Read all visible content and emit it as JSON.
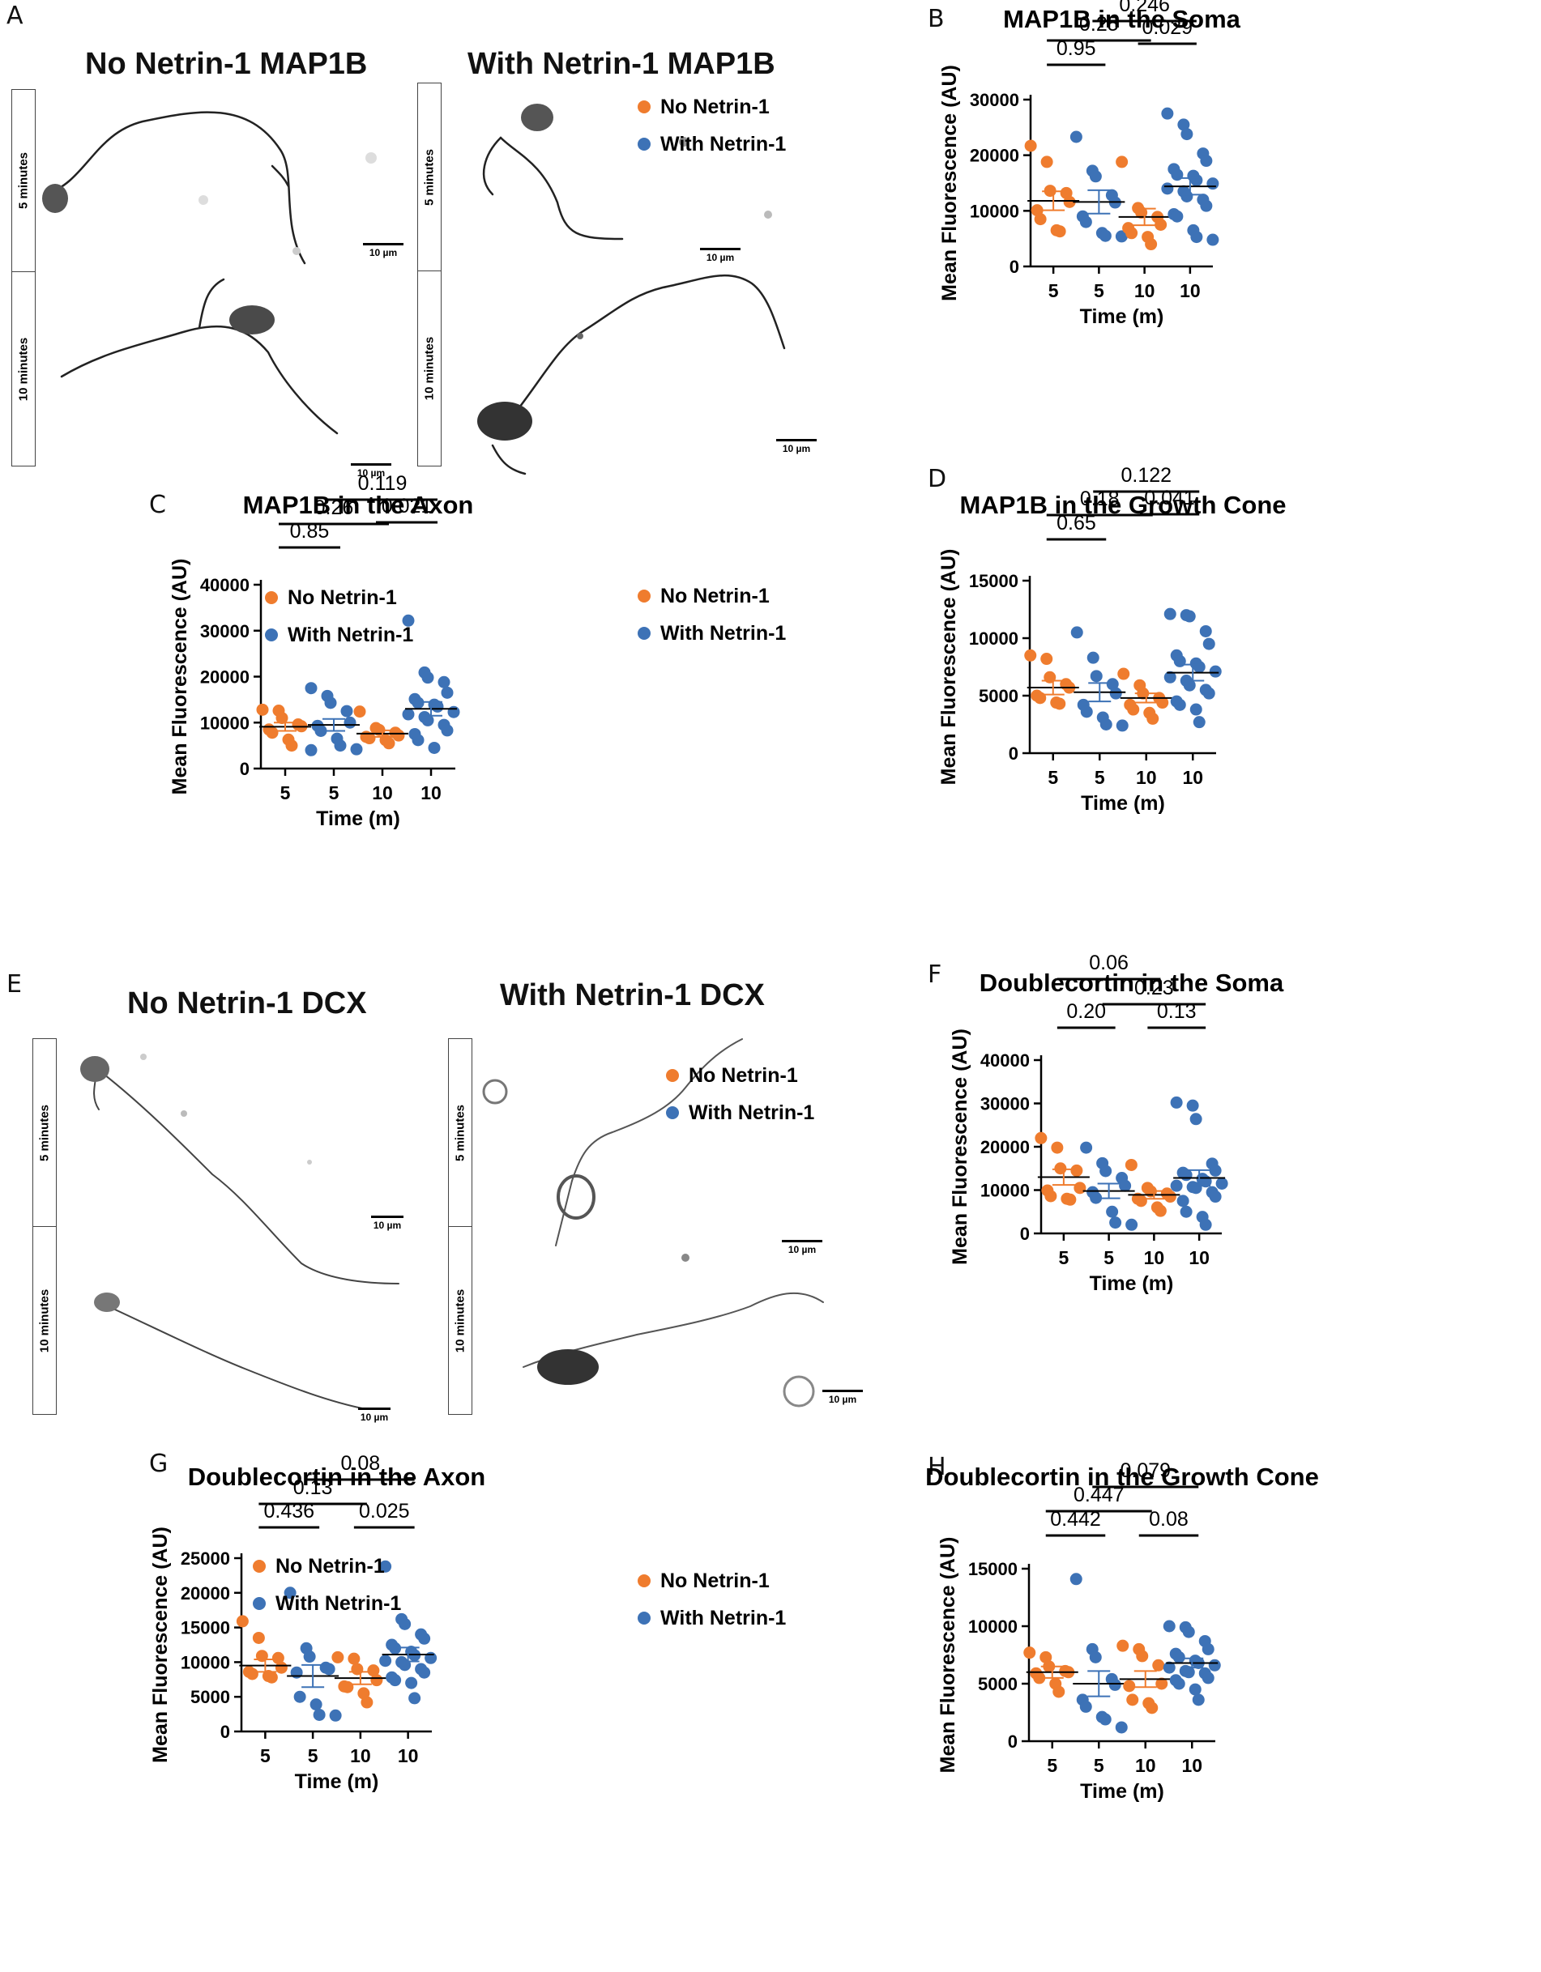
{
  "panel_labels": {
    "A": "A",
    "B": "B",
    "C": "C",
    "D": "D",
    "E": "E",
    "F": "F",
    "G": "G",
    "H": "H"
  },
  "panel_a": {
    "left_title": "No Netrin-1 MAP1B",
    "right_title": "With Netrin-1 MAP1B",
    "row_top": "5 minutes",
    "row_bottom": "10 minutes",
    "scale": "10 µm"
  },
  "panel_e": {
    "left_title": "No Netrin-1 DCX",
    "right_title": "With Netrin-1 DCX",
    "row_top": "5 minutes",
    "row_bottom": "10 minutes",
    "scale": "10 µm"
  },
  "colors": {
    "no_netrin": "#ef7c2e",
    "with_netrin": "#3d72b6",
    "axis": "#000000"
  },
  "chart_data": [
    {
      "id": "B",
      "type": "scatter",
      "title": "MAP1B in the Soma",
      "xlabel": "Time (m)",
      "ylabel": "Mean Fluorescence (AU)",
      "categories": [
        "5",
        "5",
        "10",
        "10"
      ],
      "ylim": [
        0,
        30000
      ],
      "yticks": [
        0,
        10000,
        20000,
        30000
      ],
      "legend": [
        "No Netrin-1",
        "With Netrin-1"
      ],
      "groups": [
        {
          "series": "No Netrin-1",
          "mean": 11800,
          "sem": 1700,
          "values": [
            21700,
            18800,
            13600,
            13200,
            11600,
            10100,
            8500,
            6500,
            6300
          ]
        },
        {
          "series": "With Netrin-1",
          "mean": 11600,
          "sem": 2100,
          "values": [
            23300,
            17200,
            16200,
            12800,
            11500,
            9000,
            8000,
            6000,
            5500,
            5400
          ]
        },
        {
          "series": "No Netrin-1",
          "mean": 8900,
          "sem": 1500,
          "values": [
            18800,
            10500,
            9700,
            8900,
            7500,
            6900,
            6000,
            5300,
            4000
          ]
        },
        {
          "series": "With Netrin-1",
          "mean": 14400,
          "sem": 1500,
          "values": [
            27500,
            25500,
            23800,
            20300,
            19000,
            17500,
            16500,
            16300,
            15500,
            14900,
            14000,
            13500,
            12600,
            12000,
            10900,
            9400,
            9000,
            6500,
            5300,
            4800
          ]
        }
      ],
      "comparisons": [
        {
          "from": 1,
          "to": 3,
          "label": "0.246"
        },
        {
          "from": 2,
          "to": 3,
          "label": "0.029"
        },
        {
          "from": 0,
          "to": 2,
          "label": "0.25"
        },
        {
          "from": 0,
          "to": 1,
          "label": "0.95"
        }
      ]
    },
    {
      "id": "C",
      "type": "scatter",
      "title": "MAP1B in the Axon",
      "xlabel": "Time (m)",
      "ylabel": "Mean Fluorescence (AU)",
      "categories": [
        "5",
        "5",
        "10",
        "10"
      ],
      "ylim": [
        0,
        40000
      ],
      "yticks": [
        0,
        10000,
        20000,
        30000,
        40000
      ],
      "legend": [
        "No Netrin-1",
        "With Netrin-1"
      ],
      "groups": [
        {
          "series": "No Netrin-1",
          "mean": 9100,
          "sem": 900,
          "values": [
            12800,
            12600,
            11000,
            9600,
            9200,
            8500,
            7800,
            6300,
            5000
          ]
        },
        {
          "series": "With Netrin-1",
          "mean": 9500,
          "sem": 1300,
          "values": [
            17500,
            15800,
            14300,
            12500,
            10000,
            9300,
            8200,
            6500,
            5000,
            4200,
            4000
          ]
        },
        {
          "series": "No Netrin-1",
          "mean": 7600,
          "sem": 700,
          "values": [
            12400,
            8800,
            8400,
            7800,
            7200,
            6900,
            6600,
            6200,
            5500
          ]
        },
        {
          "series": "With Netrin-1",
          "mean": 13000,
          "sem": 1500,
          "values": [
            32200,
            20900,
            19800,
            18800,
            16500,
            15100,
            14300,
            13900,
            13500,
            12300,
            11800,
            11200,
            10500,
            9500,
            8300,
            7500,
            6200,
            4500
          ]
        }
      ],
      "comparisons": [
        {
          "from": 1,
          "to": 3,
          "label": "0.119"
        },
        {
          "from": 2,
          "to": 3,
          "label": "0.021"
        },
        {
          "from": 0,
          "to": 2,
          "label": "0.26"
        },
        {
          "from": 0,
          "to": 1,
          "label": "0.85"
        }
      ]
    },
    {
      "id": "D",
      "type": "scatter",
      "title": "MAP1B in the Growth Cone",
      "xlabel": "Time (m)",
      "ylabel": "Mean Fluorescence (AU)",
      "categories": [
        "5",
        "5",
        "10",
        "10"
      ],
      "ylim": [
        0,
        15000
      ],
      "yticks": [
        0,
        5000,
        10000,
        15000
      ],
      "legend": [
        "No Netrin-1",
        "With Netrin-1"
      ],
      "groups": [
        {
          "series": "No Netrin-1",
          "mean": 5700,
          "sem": 600,
          "values": [
            8500,
            8200,
            6600,
            6000,
            5700,
            5000,
            4800,
            4400,
            4300
          ]
        },
        {
          "series": "With Netrin-1",
          "mean": 5300,
          "sem": 800,
          "values": [
            10500,
            8300,
            6700,
            6000,
            5200,
            4200,
            3600,
            3100,
            2500,
            2400
          ]
        },
        {
          "series": "No Netrin-1",
          "mean": 4800,
          "sem": 400,
          "values": [
            6900,
            5900,
            5200,
            4800,
            4400,
            4200,
            3800,
            3500,
            3000
          ]
        },
        {
          "series": "With Netrin-1",
          "mean": 7000,
          "sem": 700,
          "values": [
            12100,
            12000,
            11900,
            10600,
            9500,
            8500,
            8000,
            7800,
            7500,
            7100,
            6600,
            6300,
            5900,
            5500,
            5200,
            4500,
            4200,
            3800,
            2700
          ]
        }
      ],
      "comparisons": [
        {
          "from": 1,
          "to": 3,
          "label": "0.122"
        },
        {
          "from": 2,
          "to": 3,
          "label": "0.041"
        },
        {
          "from": 0,
          "to": 2,
          "label": "0.18"
        },
        {
          "from": 0,
          "to": 1,
          "label": "0.65"
        }
      ]
    },
    {
      "id": "F",
      "type": "scatter",
      "title": "Doublecortin in the Soma",
      "xlabel": "Time (m)",
      "ylabel": "Mean Fluorescence (AU)",
      "categories": [
        "5",
        "5",
        "10",
        "10"
      ],
      "ylim": [
        0,
        40000
      ],
      "yticks": [
        0,
        10000,
        20000,
        30000,
        40000
      ],
      "legend": [
        "No Netrin-1",
        "With Netrin-1"
      ],
      "groups": [
        {
          "series": "No Netrin-1",
          "mean": 13000,
          "sem": 1800,
          "values": [
            22000,
            19800,
            15000,
            14500,
            10500,
            9900,
            8600,
            8000,
            7800
          ]
        },
        {
          "series": "With Netrin-1",
          "mean": 9800,
          "sem": 1700,
          "values": [
            19800,
            16200,
            14400,
            12800,
            11000,
            9500,
            8200,
            5000,
            2500,
            2000
          ]
        },
        {
          "series": "No Netrin-1",
          "mean": 8900,
          "sem": 900,
          "values": [
            15800,
            10500,
            9700,
            9200,
            8500,
            8000,
            7500,
            6000,
            5200
          ]
        },
        {
          "series": "With Netrin-1",
          "mean": 12800,
          "sem": 1800,
          "values": [
            30200,
            29500,
            26400,
            16100,
            14500,
            14000,
            13500,
            12600,
            12000,
            11500,
            11000,
            10700,
            10500,
            9500,
            8500,
            7500,
            5000,
            3800,
            2000
          ]
        }
      ],
      "comparisons": [
        {
          "from": 0,
          "to": 2,
          "label": "0.06"
        },
        {
          "from": 1,
          "to": 3,
          "label": "0.23"
        },
        {
          "from": 0,
          "to": 1,
          "label": "0.20"
        },
        {
          "from": 2,
          "to": 3,
          "label": "0.13"
        }
      ]
    },
    {
      "id": "G",
      "type": "scatter",
      "title": "Doublecortin in the Axon",
      "xlabel": "Time (m)",
      "ylabel": "Mean Fluorescence (AU)",
      "categories": [
        "5",
        "5",
        "10",
        "10"
      ],
      "ylim": [
        0,
        25000
      ],
      "yticks": [
        0,
        5000,
        10000,
        15000,
        20000,
        25000
      ],
      "legend": [
        "No Netrin-1",
        "With Netrin-1"
      ],
      "groups": [
        {
          "series": "No Netrin-1",
          "mean": 9500,
          "sem": 900,
          "values": [
            15900,
            13500,
            10900,
            10600,
            9200,
            8600,
            8300,
            8000,
            7800
          ]
        },
        {
          "series": "With Netrin-1",
          "mean": 8000,
          "sem": 1600,
          "values": [
            20000,
            12000,
            10800,
            9200,
            9000,
            8500,
            5000,
            3900,
            2400,
            2300
          ]
        },
        {
          "series": "No Netrin-1",
          "mean": 7700,
          "sem": 900,
          "values": [
            10700,
            10500,
            9000,
            8800,
            7400,
            6500,
            6400,
            5500,
            4200
          ]
        },
        {
          "series": "With Netrin-1",
          "mean": 11100,
          "sem": 1000,
          "values": [
            23800,
            16200,
            15500,
            14000,
            13400,
            12500,
            12000,
            11500,
            11000,
            10600,
            10200,
            10000,
            9600,
            9000,
            8500,
            7800,
            7400,
            7000,
            4800
          ]
        }
      ],
      "comparisons": [
        {
          "from": 1,
          "to": 3,
          "label": "0.08"
        },
        {
          "from": 0,
          "to": 2,
          "label": "0.13"
        },
        {
          "from": 0,
          "to": 1,
          "label": "0.436"
        },
        {
          "from": 2,
          "to": 3,
          "label": "0.025"
        }
      ]
    },
    {
      "id": "H",
      "type": "scatter",
      "title": "Doublecortin in the Growth Cone",
      "xlabel": "Time (m)",
      "ylabel": "Mean Fluorescence (AU)",
      "categories": [
        "5",
        "5",
        "10",
        "10"
      ],
      "ylim": [
        0,
        15000
      ],
      "yticks": [
        0,
        5000,
        10000,
        15000
      ],
      "legend": [
        "No Netrin-1",
        "With Netrin-1"
      ],
      "groups": [
        {
          "series": "No Netrin-1",
          "mean": 6000,
          "sem": 500,
          "values": [
            7700,
            7300,
            6500,
            6100,
            6000,
            5900,
            5500,
            5000,
            4300
          ]
        },
        {
          "series": "With Netrin-1",
          "mean": 5000,
          "sem": 1100,
          "values": [
            14100,
            8000,
            7300,
            5400,
            4900,
            3600,
            3000,
            2100,
            1900,
            1200
          ]
        },
        {
          "series": "No Netrin-1",
          "mean": 5400,
          "sem": 700,
          "values": [
            8300,
            8000,
            7400,
            6600,
            5000,
            4800,
            3600,
            3300,
            2900
          ]
        },
        {
          "series": "With Netrin-1",
          "mean": 6800,
          "sem": 400,
          "values": [
            10000,
            9900,
            9500,
            8700,
            8000,
            7600,
            7300,
            7000,
            6800,
            6600,
            6400,
            6100,
            6000,
            5900,
            5500,
            5300,
            5000,
            4500,
            3600
          ]
        }
      ],
      "comparisons": [
        {
          "from": 1,
          "to": 3,
          "label": "0.079"
        },
        {
          "from": 0,
          "to": 2,
          "label": "0.447"
        },
        {
          "from": 2,
          "to": 3,
          "label": "0.08"
        },
        {
          "from": 0,
          "to": 1,
          "label": "0.442"
        }
      ]
    }
  ]
}
